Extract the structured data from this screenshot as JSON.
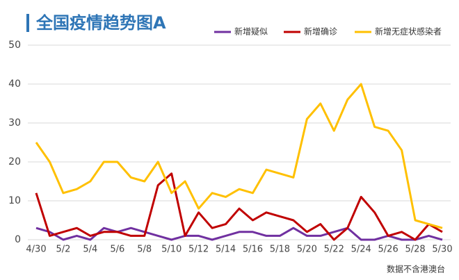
{
  "chart_data": {
    "type": "line",
    "title": "全国疫情趋势图A",
    "categories": [
      "4/30",
      null,
      "5/2",
      null,
      "5/4",
      null,
      "5/6",
      null,
      "5/8",
      null,
      "5/10",
      null,
      "5/12",
      null,
      "5/14",
      null,
      "5/16",
      null,
      "5/18",
      null,
      "5/20",
      null,
      "5/22",
      null,
      "5/24",
      null,
      "5/26",
      null,
      "5/28",
      null,
      "5/30"
    ],
    "series": [
      {
        "name": "新增疑似",
        "color": "#7030a0",
        "values": [
          3,
          2,
          0,
          1,
          0,
          3,
          2,
          3,
          2,
          1,
          0,
          1,
          1,
          0,
          1,
          2,
          2,
          1,
          1,
          3,
          1,
          1,
          2,
          3,
          0,
          0,
          1,
          0,
          0,
          1,
          0
        ]
      },
      {
        "name": "新增确诊",
        "color": "#c00000",
        "values": [
          12,
          1,
          2,
          3,
          1,
          2,
          2,
          1,
          1,
          14,
          17,
          1,
          7,
          3,
          4,
          8,
          5,
          7,
          6,
          5,
          2,
          4,
          0,
          3,
          11,
          7,
          1,
          2,
          0,
          4,
          2
        ]
      },
      {
        "name": "新增无症状感染者",
        "color": "#ffc000",
        "values": [
          25,
          20,
          12,
          13,
          15,
          20,
          20,
          16,
          15,
          20,
          12,
          15,
          8,
          12,
          11,
          13,
          12,
          18,
          17,
          16,
          31,
          35,
          28,
          36,
          40,
          29,
          28,
          23,
          5,
          4,
          3
        ]
      }
    ],
    "ylim": [
      0,
      50
    ],
    "yticks": [
      0,
      10,
      20,
      30,
      40,
      50
    ],
    "grid": true,
    "legend": "top",
    "note": "数据不含港澳台"
  }
}
